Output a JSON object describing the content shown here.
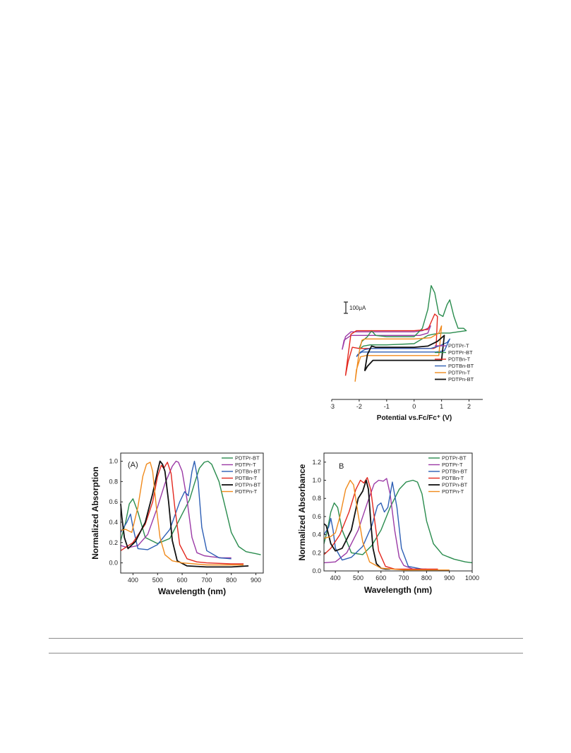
{
  "chart_data": [
    {
      "id": "cv",
      "type": "line",
      "xlabel": "Potential vs.Fc/Fc⁺ (V)",
      "ylabel": "",
      "xlim": [
        -3,
        2.5
      ],
      "ylim": [
        0,
        1
      ],
      "xticks": [
        -3,
        -2,
        -1,
        0,
        1,
        2
      ],
      "scale_bar_label": "100μA",
      "legend_position": "lower-right",
      "grid": false,
      "series": [
        {
          "name": "PDTPr-T",
          "color": "#9b3aa6",
          "x": [
            -2.62,
            -2.5,
            -2.3,
            -2.0,
            -1.5,
            -1.0,
            -0.5,
            0.0,
            0.3,
            0.5,
            0.6,
            0.5,
            0.2,
            -0.5,
            -1.5,
            -2.3,
            -2.55,
            -2.62
          ],
          "y": [
            0.42,
            0.53,
            0.57,
            0.57,
            0.57,
            0.57,
            0.57,
            0.57,
            0.58,
            0.6,
            0.62,
            0.56,
            0.54,
            0.54,
            0.54,
            0.54,
            0.5,
            0.42
          ]
        },
        {
          "name": "PDTPr-BT",
          "color": "#2a8c4e",
          "x": [
            -2.0,
            -1.9,
            -1.7,
            -1.55,
            -1.4,
            -1.0,
            -0.5,
            0.0,
            0.3,
            0.5,
            0.62,
            0.75,
            0.9,
            1.05,
            1.2,
            1.3,
            1.45,
            1.6,
            1.8,
            1.9,
            1.6,
            1.3,
            1.0,
            0.7,
            0.5,
            0.0,
            -1.0,
            -1.6,
            -1.85,
            -1.95,
            -2.0
          ],
          "y": [
            0.43,
            0.49,
            0.53,
            0.58,
            0.54,
            0.53,
            0.53,
            0.53,
            0.6,
            0.76,
            0.96,
            0.9,
            0.72,
            0.7,
            0.8,
            0.84,
            0.7,
            0.6,
            0.6,
            0.58,
            0.57,
            0.56,
            0.56,
            0.55,
            0.54,
            0.47,
            0.46,
            0.46,
            0.45,
            0.43,
            0.43
          ]
        },
        {
          "name": "PDTBn-T",
          "color": "#e3281f",
          "x": [
            -2.5,
            -2.4,
            -2.3,
            -2.1,
            -1.5,
            -1.0,
            0.0,
            0.5,
            0.75,
            0.85,
            0.8,
            0.7,
            0.5,
            0.0,
            -1.0,
            -2.0,
            -2.25,
            -2.4,
            -2.5
          ],
          "y": [
            0.2,
            0.38,
            0.55,
            0.58,
            0.58,
            0.58,
            0.58,
            0.59,
            0.72,
            0.7,
            0.44,
            0.43,
            0.43,
            0.43,
            0.43,
            0.43,
            0.44,
            0.32,
            0.2
          ]
        },
        {
          "name": "PDTBn-BT",
          "color": "#2e5fb5",
          "x": [
            -2.1,
            -1.95,
            -1.8,
            -1.6,
            -1.0,
            0.0,
            0.6,
            0.9,
            1.2,
            1.3,
            1.1,
            0.8,
            0.3,
            -0.5,
            -1.5,
            -1.9,
            -2.05,
            -2.1
          ],
          "y": [
            0.36,
            0.4,
            0.42,
            0.43,
            0.43,
            0.43,
            0.43,
            0.45,
            0.48,
            0.51,
            0.41,
            0.4,
            0.4,
            0.4,
            0.4,
            0.4,
            0.38,
            0.36
          ]
        },
        {
          "name": "PDTPn-T",
          "color": "#f08a1c",
          "x": [
            -2.15,
            -2.0,
            -1.9,
            -1.8,
            -1.0,
            0.0,
            0.6,
            0.9,
            1.0,
            0.9,
            0.6,
            0.0,
            -1.0,
            -1.75,
            -1.95,
            -2.1,
            -2.15
          ],
          "y": [
            0.15,
            0.4,
            0.5,
            0.51,
            0.51,
            0.51,
            0.52,
            0.56,
            0.62,
            0.37,
            0.37,
            0.37,
            0.37,
            0.37,
            0.36,
            0.25,
            0.15
          ]
        },
        {
          "name": "PDTPn-BT",
          "color": "#111111",
          "x": [
            -1.8,
            -1.7,
            -1.55,
            -1.4,
            -1.0,
            0.0,
            0.5,
            0.85,
            1.1,
            1.0,
            0.6,
            0.0,
            -1.0,
            -1.5,
            -1.7,
            -1.8
          ],
          "y": [
            0.24,
            0.38,
            0.45,
            0.44,
            0.44,
            0.44,
            0.45,
            0.49,
            0.54,
            0.33,
            0.33,
            0.33,
            0.33,
            0.33,
            0.28,
            0.24
          ]
        }
      ]
    },
    {
      "id": "A",
      "type": "line",
      "panel_label": "(A)",
      "xlabel": "Wavelength (nm)",
      "ylabel": "Normalized Absorption",
      "xlim": [
        350,
        930
      ],
      "ylim": [
        -0.1,
        1.08
      ],
      "xticks": [
        400,
        500,
        600,
        700,
        800,
        900
      ],
      "yticks": [
        0.0,
        0.2,
        0.4,
        0.6,
        0.8,
        1.0
      ],
      "legend_position": "top-right",
      "grid": false,
      "series": [
        {
          "name": "PDTPr-BT",
          "color": "#2a8c4e",
          "x": [
            350,
            370,
            385,
            400,
            420,
            450,
            500,
            550,
            600,
            630,
            650,
            670,
            690,
            705,
            720,
            750,
            780,
            800,
            830,
            860,
            900,
            920
          ],
          "y": [
            0.22,
            0.4,
            0.58,
            0.63,
            0.5,
            0.25,
            0.19,
            0.24,
            0.48,
            0.62,
            0.78,
            0.93,
            0.99,
            1.0,
            0.97,
            0.8,
            0.5,
            0.3,
            0.16,
            0.11,
            0.09,
            0.08
          ]
        },
        {
          "name": "PDTPr-T",
          "color": "#9b3aa6",
          "x": [
            350,
            380,
            420,
            460,
            500,
            530,
            560,
            575,
            585,
            600,
            620,
            640,
            660,
            690,
            720,
            760,
            800
          ],
          "y": [
            0.17,
            0.15,
            0.17,
            0.28,
            0.55,
            0.78,
            0.95,
            1.0,
            0.99,
            0.9,
            0.62,
            0.25,
            0.1,
            0.07,
            0.06,
            0.05,
            0.05
          ]
        },
        {
          "name": "PDTBn-BT",
          "color": "#2e5fb5",
          "x": [
            350,
            375,
            390,
            400,
            420,
            460,
            500,
            550,
            590,
            610,
            625,
            640,
            650,
            665,
            680,
            700,
            750,
            800
          ],
          "y": [
            0.3,
            0.4,
            0.48,
            0.35,
            0.14,
            0.13,
            0.18,
            0.33,
            0.6,
            0.7,
            0.66,
            0.9,
            1.0,
            0.8,
            0.35,
            0.12,
            0.05,
            0.04
          ]
        },
        {
          "name": "PDTBn-T",
          "color": "#e3281f",
          "x": [
            350,
            400,
            450,
            480,
            500,
            515,
            525,
            540,
            555,
            570,
            590,
            620,
            660,
            700,
            800,
            850
          ],
          "y": [
            0.12,
            0.2,
            0.38,
            0.6,
            0.85,
            0.96,
            0.93,
            0.99,
            0.88,
            0.55,
            0.18,
            0.04,
            0.01,
            0.0,
            -0.01,
            -0.01
          ]
        },
        {
          "name": "PDTPn-BT",
          "color": "#111111",
          "x": [
            350,
            355,
            365,
            380,
            410,
            450,
            480,
            500,
            510,
            520,
            530,
            545,
            560,
            580,
            620,
            700,
            800,
            870
          ],
          "y": [
            0.58,
            0.45,
            0.25,
            0.14,
            0.21,
            0.4,
            0.68,
            0.9,
            1.0,
            0.97,
            0.9,
            0.6,
            0.22,
            0.02,
            -0.03,
            -0.04,
            -0.04,
            -0.03
          ]
        },
        {
          "name": "PDTPn-T",
          "color": "#f08a1c",
          "x": [
            350,
            370,
            395,
            420,
            440,
            455,
            470,
            480,
            495,
            510,
            530,
            560,
            600,
            700,
            800,
            850
          ],
          "y": [
            0.32,
            0.33,
            0.3,
            0.55,
            0.85,
            0.97,
            0.99,
            0.9,
            0.55,
            0.25,
            0.08,
            0.02,
            0.0,
            -0.02,
            -0.02,
            -0.02
          ]
        }
      ]
    },
    {
      "id": "B",
      "type": "line",
      "panel_label": "B",
      "xlabel": "Wavelength (nm)",
      "ylabel": "Normalized Absorbance",
      "xlim": [
        350,
        1000
      ],
      "ylim": [
        0,
        1.3
      ],
      "xticks": [
        400,
        500,
        600,
        700,
        800,
        900,
        1000
      ],
      "yticks": [
        0.0,
        0.2,
        0.4,
        0.6,
        0.8,
        1.0,
        1.2
      ],
      "legend_position": "top-right",
      "grid": false,
      "series": [
        {
          "name": "PDTPr-BT",
          "color": "#2a8c4e",
          "x": [
            350,
            365,
            380,
            395,
            410,
            430,
            470,
            520,
            560,
            600,
            640,
            680,
            710,
            740,
            760,
            780,
            800,
            830,
            870,
            920,
            970,
            1000
          ],
          "y": [
            0.3,
            0.45,
            0.65,
            0.75,
            0.7,
            0.45,
            0.2,
            0.18,
            0.28,
            0.45,
            0.7,
            0.9,
            0.98,
            1.0,
            0.98,
            0.85,
            0.55,
            0.3,
            0.18,
            0.13,
            0.1,
            0.09
          ]
        },
        {
          "name": "PDTPr-T",
          "color": "#9b3aa6",
          "x": [
            350,
            400,
            450,
            500,
            540,
            570,
            590,
            610,
            625,
            640,
            660,
            680,
            700,
            740,
            780,
            800
          ],
          "y": [
            0.09,
            0.1,
            0.2,
            0.45,
            0.75,
            0.96,
            1.0,
            0.99,
            1.02,
            0.85,
            0.45,
            0.15,
            0.06,
            0.02,
            0.02,
            0.02
          ]
        },
        {
          "name": "PDTBn-BT",
          "color": "#2e5fb5",
          "x": [
            350,
            370,
            380,
            390,
            400,
            430,
            470,
            520,
            560,
            585,
            600,
            615,
            630,
            650,
            670,
            690,
            720,
            800,
            900
          ],
          "y": [
            0.4,
            0.48,
            0.58,
            0.45,
            0.25,
            0.12,
            0.15,
            0.27,
            0.5,
            0.72,
            0.75,
            0.65,
            0.7,
            0.98,
            0.7,
            0.25,
            0.05,
            0.01,
            0.01
          ]
        },
        {
          "name": "PDTBn-T",
          "color": "#e3281f",
          "x": [
            350,
            380,
            420,
            460,
            490,
            510,
            525,
            540,
            555,
            570,
            590,
            620,
            660,
            700,
            800,
            850
          ],
          "y": [
            0.18,
            0.25,
            0.4,
            0.65,
            0.9,
            1.0,
            0.97,
            1.03,
            0.9,
            0.6,
            0.22,
            0.05,
            0.02,
            0.02,
            0.02,
            0.02
          ]
        },
        {
          "name": "PDTPn-BT",
          "color": "#111111",
          "x": [
            350,
            360,
            370,
            380,
            400,
            430,
            470,
            500,
            520,
            535,
            545,
            555,
            565,
            580,
            600,
            620,
            640
          ],
          "y": [
            0.52,
            0.5,
            0.4,
            0.3,
            0.22,
            0.25,
            0.45,
            0.8,
            0.88,
            1.0,
            0.9,
            0.55,
            0.25,
            0.08,
            0.03,
            0.02,
            0.02
          ]
        },
        {
          "name": "PDTPn-T",
          "color": "#f08a1c",
          "x": [
            350,
            380,
            400,
            420,
            445,
            465,
            480,
            500,
            520,
            550,
            600,
            700,
            800,
            900
          ],
          "y": [
            0.36,
            0.38,
            0.42,
            0.6,
            0.9,
            1.0,
            0.95,
            0.62,
            0.32,
            0.1,
            0.03,
            0.01,
            0.01,
            0.01
          ]
        }
      ]
    }
  ]
}
